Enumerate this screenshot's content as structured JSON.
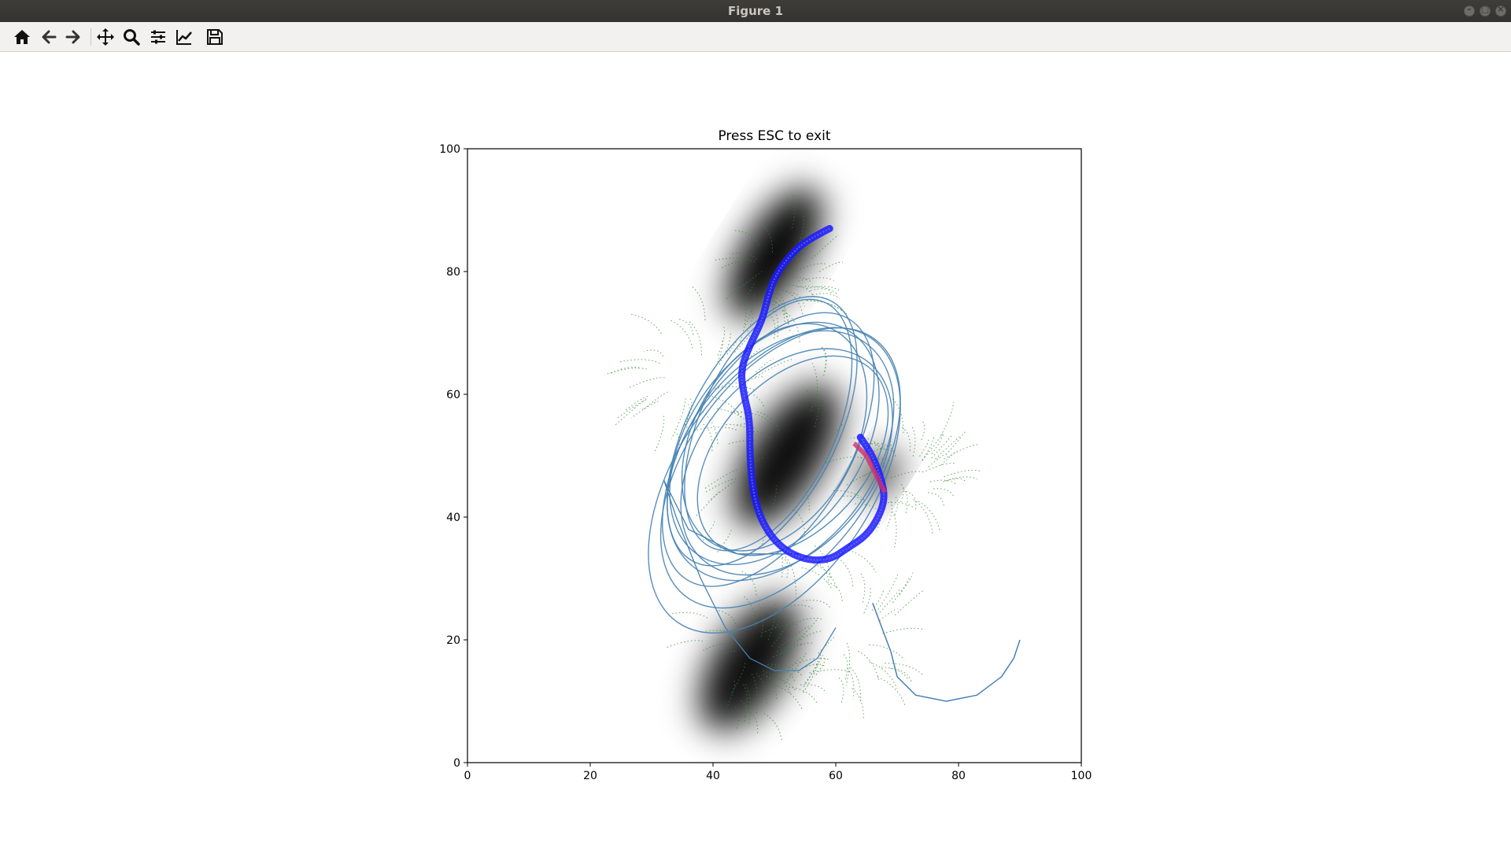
{
  "window": {
    "title": "Figure 1"
  },
  "toolbar": {
    "buttons": [
      {
        "name": "home-icon",
        "tooltip": "Home"
      },
      {
        "name": "back-icon",
        "tooltip": "Back"
      },
      {
        "name": "forward-icon",
        "tooltip": "Forward"
      },
      {
        "name": "pan-icon",
        "tooltip": "Pan"
      },
      {
        "name": "zoom-icon",
        "tooltip": "Zoom"
      },
      {
        "name": "configure-subplots-icon",
        "tooltip": "Subplots"
      },
      {
        "name": "edit-axis-icon",
        "tooltip": "Customize"
      },
      {
        "name": "save-icon",
        "tooltip": "Save"
      }
    ]
  },
  "chart_data": {
    "type": "line",
    "title": "Press ESC to exit",
    "xlabel": "",
    "ylabel": "",
    "xlim": [
      0,
      100
    ],
    "ylim": [
      0,
      100
    ],
    "xticks": [
      "0",
      "20",
      "40",
      "60",
      "80",
      "100"
    ],
    "yticks": [
      "0",
      "20",
      "40",
      "60",
      "80",
      "100"
    ],
    "grid": false,
    "colors": {
      "density": "#000000",
      "particles": "#2e8b2e",
      "mean_path": "#1a1aff",
      "history": "#4682b4",
      "target": "#d0306f"
    },
    "density_centers": [
      {
        "x": 50,
        "y": 83,
        "sx": 5,
        "sy": 11,
        "w": 1.0
      },
      {
        "x": 52,
        "y": 50,
        "sx": 6,
        "sy": 12,
        "w": 0.95
      },
      {
        "x": 46,
        "y": 16,
        "sx": 6,
        "sy": 11,
        "w": 0.95
      },
      {
        "x": 67,
        "y": 47,
        "sx": 2.5,
        "sy": 4,
        "w": 0.9
      }
    ],
    "mean_path": [
      [
        59,
        87
      ],
      [
        55,
        85
      ],
      [
        52,
        82
      ],
      [
        50,
        79
      ],
      [
        49,
        76
      ],
      [
        48,
        72
      ],
      [
        46,
        68
      ],
      [
        44.5,
        64
      ],
      [
        45,
        60
      ],
      [
        46,
        56
      ],
      [
        46,
        50
      ],
      [
        46.5,
        44
      ],
      [
        48,
        39
      ],
      [
        51,
        35
      ],
      [
        55,
        33
      ],
      [
        59,
        33
      ],
      [
        62,
        35
      ],
      [
        65,
        37
      ],
      [
        67,
        40
      ],
      [
        68,
        43
      ],
      [
        67.5,
        46
      ],
      [
        66,
        50
      ],
      [
        64,
        53
      ]
    ],
    "target_segment": [
      [
        63,
        52
      ],
      [
        65,
        50
      ],
      [
        66.5,
        47
      ],
      [
        68,
        44
      ]
    ],
    "history_loops": [
      {
        "cx": 50,
        "cy": 52,
        "rx": 22,
        "ry": 14,
        "rot": -55
      },
      {
        "cx": 49,
        "cy": 51,
        "rx": 25,
        "ry": 13,
        "rot": -58
      },
      {
        "cx": 51,
        "cy": 50,
        "rx": 23,
        "ry": 15,
        "rot": -52
      },
      {
        "cx": 50,
        "cy": 53,
        "rx": 20,
        "ry": 13,
        "rot": -60
      },
      {
        "cx": 52,
        "cy": 49,
        "rx": 21,
        "ry": 14,
        "rot": -50
      },
      {
        "cx": 48,
        "cy": 54,
        "rx": 24,
        "ry": 12,
        "rot": -62
      },
      {
        "cx": 51,
        "cy": 48,
        "rx": 26,
        "ry": 15,
        "rot": -54
      },
      {
        "cx": 53,
        "cy": 50,
        "rx": 19,
        "ry": 12,
        "rot": -48
      },
      {
        "cx": 49,
        "cy": 55,
        "rx": 22,
        "ry": 11,
        "rot": -65
      },
      {
        "cx": 50,
        "cy": 46,
        "rx": 28,
        "ry": 16,
        "rot": -56
      }
    ],
    "history_tail": [
      [
        66,
        26
      ],
      [
        69,
        18
      ],
      [
        70,
        14
      ],
      [
        73,
        11
      ],
      [
        78,
        10
      ],
      [
        83,
        11
      ],
      [
        87,
        14
      ],
      [
        89,
        17
      ],
      [
        90,
        20
      ]
    ],
    "history_outer": [
      [
        54,
        34
      ],
      [
        44,
        34
      ],
      [
        36,
        38
      ],
      [
        32,
        46
      ],
      [
        34,
        40
      ],
      [
        38,
        30
      ],
      [
        42,
        22
      ],
      [
        46,
        17
      ],
      [
        50,
        15
      ],
      [
        54,
        15
      ],
      [
        57,
        17
      ],
      [
        60,
        22
      ]
    ]
  }
}
